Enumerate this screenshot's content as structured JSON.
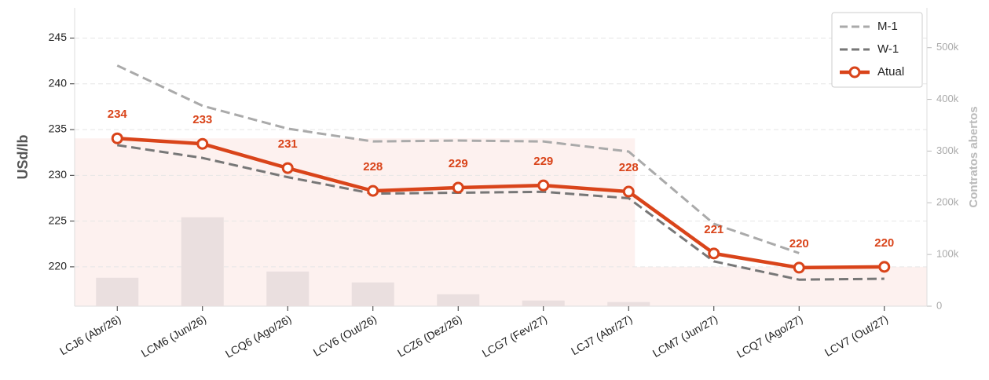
{
  "chart_data": {
    "type": "line",
    "ylabel": "USd/lb",
    "y2label": "Contratos abertos",
    "categories": [
      "LCJ6 (Abr/26)",
      "LCM6 (Jun/26)",
      "LCQ6 (Ago/26)",
      "LCV6 (Out/26)",
      "LCZ6 (Dez/26)",
      "LCG7 (Fev/27)",
      "LCJ7 (Abr/27)",
      "LCM7 (Jun/27)",
      "LCQ7 (Ago/27)",
      "LCV7 (Out/27)"
    ],
    "series": [
      {
        "name": "M-1",
        "color": "#aaaaaa",
        "dash": true,
        "values": [
          242.0,
          237.6,
          235.1,
          233.7,
          233.8,
          233.7,
          232.6,
          224.7,
          221.5,
          null
        ]
      },
      {
        "name": "W-1",
        "color": "#777777",
        "dash": true,
        "values": [
          233.3,
          231.9,
          229.8,
          228.0,
          228.1,
          228.2,
          227.5,
          220.6,
          218.6,
          218.7
        ]
      },
      {
        "name": "Atual",
        "color": "#d9441a",
        "markers": true,
        "values": [
          234.04,
          233.44,
          230.79,
          228.3,
          228.65,
          228.9,
          228.22,
          221.46,
          219.91,
          220.0
        ],
        "value_labels": [
          "234",
          "233",
          "231",
          "228",
          "229",
          "229",
          "228",
          "221",
          "220",
          "220"
        ]
      }
    ],
    "open_interest": {
      "axis": "y2",
      "color": "#eadfdf",
      "values": [
        55000,
        172000,
        67000,
        46000,
        23000,
        11000,
        8000,
        0,
        0,
        0
      ]
    },
    "ylim": [
      215.7,
      248.3
    ],
    "yticks": [
      220,
      225,
      230,
      235,
      240,
      245
    ],
    "y2lim": [
      0,
      577000
    ],
    "y2ticks": [
      0,
      {
        "value": 100000,
        "label": "100k"
      },
      {
        "value": 200000,
        "label": "200k"
      },
      {
        "value": 300000,
        "label": "300k"
      },
      {
        "value": 400000,
        "label": "400k"
      },
      {
        "value": 500000,
        "label": "500k"
      }
    ],
    "grid": true,
    "legend": "upper right"
  }
}
